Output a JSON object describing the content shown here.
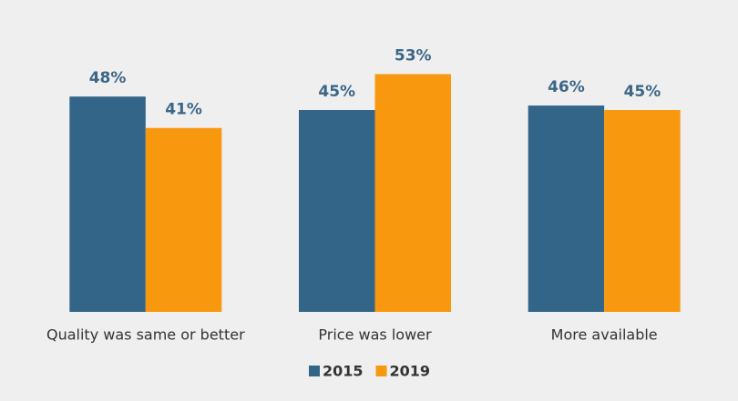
{
  "chart_data": {
    "type": "bar",
    "categories": [
      "Quality was same or better",
      "Price was lower",
      "More available"
    ],
    "series": [
      {
        "name": "2015",
        "color": "#336588",
        "values": [
          48,
          45,
          46
        ],
        "value_labels": [
          "48%",
          "45%",
          "46%"
        ]
      },
      {
        "name": "2019",
        "color": "#f7980f",
        "values": [
          41,
          53,
          45
        ],
        "value_labels": [
          "41%",
          "53%",
          "45%"
        ]
      }
    ],
    "ylim": [
      0,
      60
    ],
    "legend": "bottom"
  }
}
